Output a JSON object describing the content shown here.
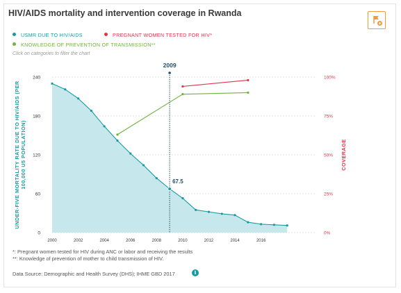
{
  "header": {
    "title": "HIV/AIDS mortality and intervention coverage in Rwanda"
  },
  "legend": {
    "items": [
      {
        "label": "USMR DUE TO HIV/AIDS",
        "color": "#1a9aa0"
      },
      {
        "label": "PREGNANT WOMEN TESTED FOR HIV*",
        "color": "#e0344b"
      },
      {
        "label": "KNOWLEDGE OF PREVENTION OF TRANSMISSION**",
        "color": "#6db33f"
      }
    ],
    "hint": "Click on categories to filter the chart"
  },
  "icons": {
    "flag": "flag-plus-icon",
    "info": "info-icon"
  },
  "chart_data": {
    "type": "line",
    "ylabel_left": "UNDER-FIVE MORTALITY RATE DUE TO HIV/AIDS (PER 100,000 U5 POPULATION)",
    "ylabel_right": "COVERAGE",
    "xlim": [
      2000,
      2019
    ],
    "ylim_left": [
      0,
      240
    ],
    "ylim_right": [
      0,
      100
    ],
    "x_ticks": [
      2000,
      2002,
      2004,
      2006,
      2008,
      2010,
      2012,
      2014,
      2016
    ],
    "y_ticks_left": [
      "0",
      "60",
      "120",
      "180",
      "240"
    ],
    "y_ticks_right": [
      "0%",
      "25%",
      "50%",
      "75%",
      "100%"
    ],
    "marker": {
      "x": 2009,
      "label": "2009",
      "value_label": "67.5"
    },
    "series": [
      {
        "name": "USMR DUE TO HIV/AIDS",
        "axis": "left",
        "color": "#1a9aa0",
        "area": true,
        "x": [
          2000,
          2001,
          2002,
          2003,
          2004,
          2005,
          2006,
          2007,
          2008,
          2009,
          2010,
          2011,
          2012,
          2013,
          2014,
          2015,
          2016,
          2017,
          2018
        ],
        "y": [
          230,
          221,
          207,
          188,
          164,
          142,
          122,
          104,
          84,
          67.5,
          53,
          35,
          32,
          29,
          27,
          16,
          13,
          12,
          11
        ]
      },
      {
        "name": "PREGNANT WOMEN TESTED FOR HIV*",
        "axis": "right",
        "color": "#e0344b",
        "area": false,
        "x": [
          2010,
          2015
        ],
        "y": [
          94,
          98
        ]
      },
      {
        "name": "KNOWLEDGE OF PREVENTION OF TRANSMISSION**",
        "axis": "right",
        "color": "#6db33f",
        "area": false,
        "x": [
          2005,
          2010,
          2015
        ],
        "y": [
          63,
          89,
          90
        ]
      }
    ]
  },
  "footnotes": [
    "*: Pregnant women tested for HIV during ANC or labor and receiving the results",
    "**: Knowledge of prevention of mother to child transmission of HIV."
  ],
  "source": "Data Source: Demographic and Health Survey (DHS); IHME GBD 2017",
  "info_glyph": "i"
}
